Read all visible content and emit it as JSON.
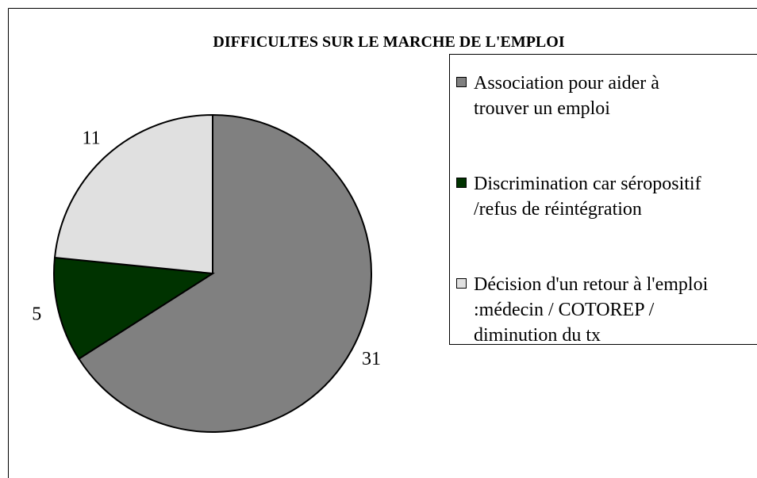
{
  "chart_data": {
    "type": "pie",
    "title": "DIFFICULTES SUR LE MARCHE DE L'EMPLOI",
    "series": [
      {
        "name": "Association pour aider à\ntrouver un emploi",
        "color": "#808080",
        "values": [
          31
        ]
      },
      {
        "name": "Discrimination car séropositif\n/refus de réintégration",
        "color": "#003300",
        "values": [
          5
        ]
      },
      {
        "name": "Décision d'un retour à l'emploi\n:médecin / COTOREP /\ndiminution du tx",
        "color": "#e0e0e0",
        "values": [
          11
        ]
      }
    ],
    "legend": "right"
  }
}
